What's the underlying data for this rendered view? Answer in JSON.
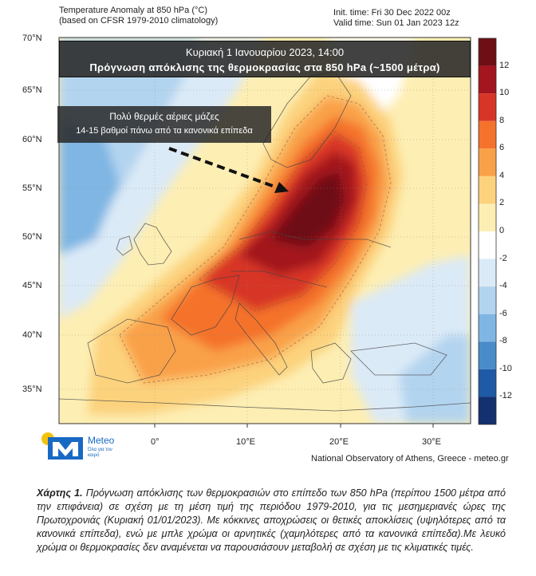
{
  "header": {
    "title_line1": "Temperature Anomaly at 850 hPa (°C)",
    "title_line2": "(based on CFSR 1979-2010 climatology)",
    "init_time": "Init. time: Fri 30 Dec 2022 00z",
    "valid_time": "Valid time: Sun 01 Jan 2023 12z"
  },
  "banner": {
    "line1": "Κυριακή  1 Ιανουαρίου 2023, 14:00",
    "line2": "Πρόγνωση  απόκλισης της θερμοκρασίας στα 850 hPa (~1500 μέτρα)"
  },
  "callout": {
    "line1": "Πολύ θερμές αέριες μάζες",
    "line2": "14-15 βαθμοί πάνω από τα κανονικά επίπεδα"
  },
  "axes": {
    "lat_labels": [
      "70°N",
      "65°N",
      "60°N",
      "55°N",
      "50°N",
      "45°N",
      "40°N",
      "35°N"
    ],
    "lon_labels": [
      "0°",
      "10°E",
      "20°E",
      "30°E"
    ]
  },
  "colorbar": {
    "labels": [
      "12",
      "10",
      "8",
      "6",
      "4",
      "2",
      "0",
      "-2",
      "-4",
      "-6",
      "-8",
      "-10",
      "-12"
    ],
    "colors": [
      "#6e0f16",
      "#a3151f",
      "#d73527",
      "#f4722b",
      "#f9a148",
      "#fcd27d",
      "#fdeeb3",
      "#ffffff",
      "#dbeaf7",
      "#b3d4ef",
      "#7fb6e3",
      "#4a8cc9",
      "#1f5aa6",
      "#14306e"
    ]
  },
  "credit": "National Observatory of Athens, Greece - meteo.gr",
  "logo": {
    "brand": "Meteo",
    "tagline": "Όλα για τον καιρό"
  },
  "caption": {
    "head": "Χάρτης 1.",
    "body": " Πρόγνωση απόκλισης των θερμοκρασιών στο επίπεδο των 850 hPa (περίπου 1500 μέτρα από την επιφάνεια) σε σχέση με τη μέση τιμή της περιόδου 1979-2010, για τις μεσημεριανές ώρες της Πρωτοχρονιάς (Κυριακή 01/01/2023). Με κόκκινες αποχρώσεις οι θετικές αποκλίσεις (υψηλότερες από τα κανονικά επίπεδα), ενώ με μπλε χρώμα οι αρνητικές (χαμηλότερες από τα κανονικά επίπεδα).Με λευκό χρώμα οι θερμοκρασίες δεν αναμένεται να παρουσιάσουν μεταβολή σε σχέση με τις κλιματικές τιμές."
  }
}
